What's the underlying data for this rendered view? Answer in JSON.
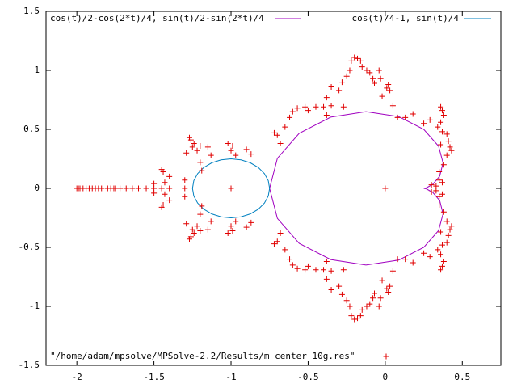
{
  "chart_data": {
    "type": "parametric",
    "xlim": [
      -2.2,
      0.75
    ],
    "ylim": [
      -1.5,
      1.5
    ],
    "xticks": [
      -2,
      -1.5,
      -1,
      -0.5,
      0,
      0.5
    ],
    "yticks": [
      -1.5,
      -1,
      -0.5,
      0,
      0.5,
      1,
      1.5
    ],
    "grid": false,
    "series": [
      {
        "name": "cos(t)/2-cos(2*t)/4, sin(t)/2-sin(2*t)/4",
        "color": "#a000c0",
        "style": "line",
        "x": [
          0.25,
          0.2665,
          0.308,
          0.3536,
          0.375,
          0.3459,
          0.25,
          0.0871,
          -0.125,
          -0.3536,
          -0.558,
          -0.6995,
          -0.75,
          -0.6995,
          -0.558,
          -0.3536,
          -0.125,
          0.0871,
          0.25,
          0.3459,
          0.375,
          0.3536,
          0.308,
          0.2665,
          0.25
        ],
        "y": [
          0,
          0.0044,
          0.0335,
          0.1036,
          0.2165,
          0.358,
          0.5,
          0.608,
          0.6495,
          0.6036,
          0.4665,
          0.2544,
          0,
          -0.2544,
          -0.4665,
          -0.6036,
          -0.6495,
          -0.608,
          -0.5,
          -0.358,
          -0.2165,
          -0.1036,
          -0.0335,
          -0.0044,
          0
        ]
      },
      {
        "name": "cos(t)/4-1, sin(t)/4",
        "color": "#0080c0",
        "style": "line",
        "x": [
          -0.75,
          -0.7585,
          -0.7835,
          -0.8232,
          -0.875,
          -0.9353,
          -1,
          -1.0647,
          -1.125,
          -1.1768,
          -1.2165,
          -1.2415,
          -1.25,
          -1.2415,
          -1.2165,
          -1.1768,
          -1.125,
          -1.0647,
          -1,
          -0.9353,
          -0.875,
          -0.8232,
          -0.7835,
          -0.7585,
          -0.75
        ],
        "y": [
          0,
          0.0647,
          0.125,
          0.1768,
          0.2165,
          0.2415,
          0.25,
          0.2415,
          0.2165,
          0.1768,
          0.125,
          0.0647,
          0,
          -0.0647,
          -0.125,
          -0.1768,
          -0.2165,
          -0.2415,
          -0.25,
          -0.2415,
          -0.2165,
          -0.1768,
          -0.125,
          -0.0647,
          0
        ]
      },
      {
        "name": "\"/home/adam/mpsolve/MPSolve-2.2/Results/m_center_10g.res\"",
        "color": "#e00000",
        "style": "points",
        "x": [
          -2,
          -1.99,
          -1.98,
          -1.96,
          -1.94,
          -1.92,
          -1.9,
          -1.88,
          -1.86,
          -1.84,
          -1.8,
          -1.78,
          -1.76,
          -1.75,
          -1.72,
          -1.68,
          -1.64,
          -1.6,
          -1.55,
          -1.5,
          -1.45,
          -1.4,
          -1.3,
          -1,
          0,
          -1.27,
          -1.26,
          -1.24,
          -1.25,
          -1.22,
          -1.2,
          -1.15,
          -1.13,
          -1.02,
          -0.99,
          -1,
          -0.97,
          -0.9,
          -0.87,
          -1.29,
          -1.2,
          -1.45,
          -1.44,
          -1.4,
          -1.5,
          -1.43,
          -1.3,
          -1.19,
          -0.72,
          -0.7,
          -0.68,
          -0.65,
          -0.62,
          -0.6,
          -0.57,
          -0.52,
          -0.5,
          -0.45,
          -0.4,
          -0.35,
          -0.27,
          -0.38,
          -0.38,
          -0.35,
          -0.3,
          -0.28,
          -0.25,
          -0.23,
          -0.22,
          -0.2,
          -0.18,
          -0.16,
          -0.15,
          -0.12,
          -0.1,
          -0.08,
          -0.07,
          -0.04,
          -0.03,
          0.01,
          0.02,
          0.03,
          -0.02,
          0.05,
          0.08,
          0.13,
          0.18,
          0.25,
          0.29,
          0.36,
          0.37,
          0.38,
          0.36,
          0.34,
          0.37,
          0.4,
          0.41,
          0.42,
          0.43,
          0.36,
          0.4,
          0.38,
          0.35,
          0.35,
          0.33,
          0.37,
          0.3,
          -1.27,
          -1.26,
          -1.24,
          -1.25,
          -1.22,
          -1.2,
          -1.15,
          -1.13,
          -1.02,
          -0.99,
          -1,
          -0.97,
          -0.9,
          -0.87,
          -1.29,
          -1.2,
          -1.45,
          -1.44,
          -1.4,
          -1.5,
          -1.43,
          -1.3,
          -1.19,
          -0.72,
          -0.7,
          -0.68,
          -0.65,
          -0.62,
          -0.6,
          -0.57,
          -0.52,
          -0.5,
          -0.45,
          -0.4,
          -0.35,
          -0.27,
          -0.38,
          -0.38,
          -0.35,
          -0.3,
          -0.28,
          -0.25,
          -0.23,
          -0.22,
          -0.2,
          -0.18,
          -0.16,
          -0.15,
          -0.12,
          -0.1,
          -0.08,
          -0.07,
          -0.04,
          -0.03,
          0.01,
          0.02,
          0.03,
          -0.02,
          0.05,
          0.08,
          0.13,
          0.18,
          0.25,
          0.29,
          0.36,
          0.37,
          0.38,
          0.36,
          0.34,
          0.37,
          0.4,
          0.41,
          0.42,
          0.43,
          0.36,
          0.4,
          0.38,
          0.35,
          0.35,
          0.33,
          0.37,
          0.3
        ],
        "y": [
          0,
          0,
          0,
          0,
          0,
          0,
          0,
          0,
          0,
          0,
          0,
          0,
          0,
          0,
          0,
          0,
          0,
          0,
          0,
          0,
          0,
          0,
          0,
          0,
          0,
          0.43,
          0.41,
          0.38,
          0.35,
          0.32,
          0.36,
          0.35,
          0.28,
          0.38,
          0.36,
          0.32,
          0.28,
          0.33,
          0.29,
          0.3,
          0.22,
          0.16,
          0.14,
          0.1,
          0.04,
          0.05,
          0.07,
          0.15,
          0.47,
          0.45,
          0.38,
          0.52,
          0.6,
          0.65,
          0.68,
          0.69,
          0.66,
          0.69,
          0.69,
          0.7,
          0.69,
          0.62,
          0.77,
          0.86,
          0.83,
          0.9,
          0.95,
          1,
          1.08,
          1.11,
          1.1,
          1.08,
          1.03,
          1,
          0.98,
          0.93,
          0.89,
          1,
          0.93,
          0.85,
          0.88,
          0.83,
          0.78,
          0.7,
          0.6,
          0.6,
          0.63,
          0.55,
          0.58,
          0.69,
          0.66,
          0.62,
          0.56,
          0.52,
          0.48,
          0.46,
          0.4,
          0.35,
          0.32,
          0.37,
          0.28,
          0.2,
          0.14,
          0.07,
          0.02,
          0.05,
          0.03,
          -0.43,
          -0.41,
          -0.38,
          -0.35,
          -0.32,
          -0.36,
          -0.35,
          -0.28,
          -0.38,
          -0.36,
          -0.32,
          -0.28,
          -0.33,
          -0.29,
          -0.3,
          -0.22,
          -0.16,
          -0.14,
          -0.1,
          -0.04,
          -0.05,
          -0.07,
          -0.15,
          -0.47,
          -0.45,
          -0.38,
          -0.52,
          -0.6,
          -0.65,
          -0.68,
          -0.69,
          -0.66,
          -0.69,
          -0.69,
          -0.7,
          -0.69,
          -0.62,
          -0.77,
          -0.86,
          -0.83,
          -0.9,
          -0.95,
          -1,
          -1.08,
          -1.11,
          -1.1,
          -1.08,
          -1.03,
          -1,
          -0.98,
          -0.93,
          -0.89,
          -1,
          -0.93,
          -0.85,
          -0.88,
          -0.83,
          -0.78,
          -0.7,
          -0.6,
          -0.6,
          -0.63,
          -0.55,
          -0.58,
          -0.69,
          -0.66,
          -0.62,
          -0.56,
          -0.52,
          -0.48,
          -0.46,
          -0.4,
          -0.35,
          -0.32,
          -0.37,
          -0.28,
          -0.2,
          -0.14,
          -0.07,
          -0.02,
          -0.05,
          -0.03
        ]
      }
    ]
  }
}
